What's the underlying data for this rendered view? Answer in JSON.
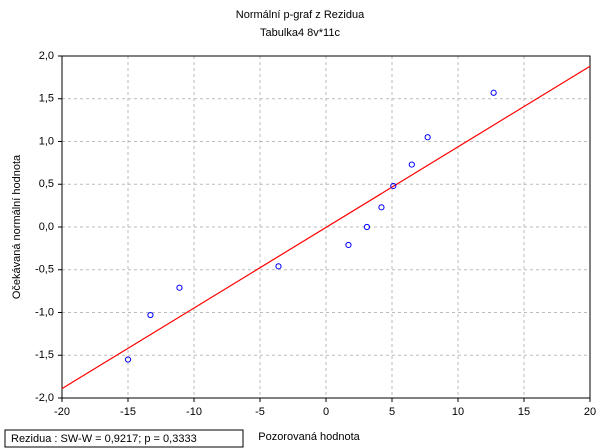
{
  "chart_data": {
    "type": "scatter",
    "title": "Normální p-graf z Rezidua",
    "subtitle": "Tabulka4 8v*11c",
    "x_label": "Pozorovaná hodnota",
    "y_label": "Očekávaná normální hodnota",
    "annotation": "Rezidua :  SW-W = 0,9217; p = 0,3333",
    "points": {
      "color": "#0000ff",
      "x": [
        -15.0,
        -13.3,
        -11.1,
        -3.6,
        1.7,
        3.1,
        4.2,
        5.1,
        6.5,
        7.7,
        12.7
      ],
      "y": [
        -1.55,
        -1.03,
        -0.71,
        -0.46,
        -0.21,
        0.0,
        0.23,
        0.48,
        0.73,
        1.05,
        1.57
      ]
    },
    "fit_line": {
      "color": "#ff0000",
      "x": [
        -20,
        20
      ],
      "y": [
        -1.89,
        1.88
      ]
    },
    "xlim": [
      -20,
      20
    ],
    "xticks": [
      -20,
      -15,
      -10,
      -5,
      0,
      5,
      10,
      15,
      20
    ],
    "ylim": [
      -2,
      2
    ],
    "yticks": [
      {
        "value": -2,
        "label": "-2,0"
      },
      {
        "value": -1.5,
        "label": "-1,5"
      },
      {
        "value": -1,
        "label": "-1,0"
      },
      {
        "value": -0.5,
        "label": "-0,5"
      },
      {
        "value": 0,
        "label": "0,0"
      },
      {
        "value": 0.5,
        "label": "0,5"
      },
      {
        "value": 1,
        "label": "1,0"
      },
      {
        "value": 1.5,
        "label": "1,5"
      },
      {
        "value": 2,
        "label": "2,0"
      }
    ],
    "grid": true
  }
}
